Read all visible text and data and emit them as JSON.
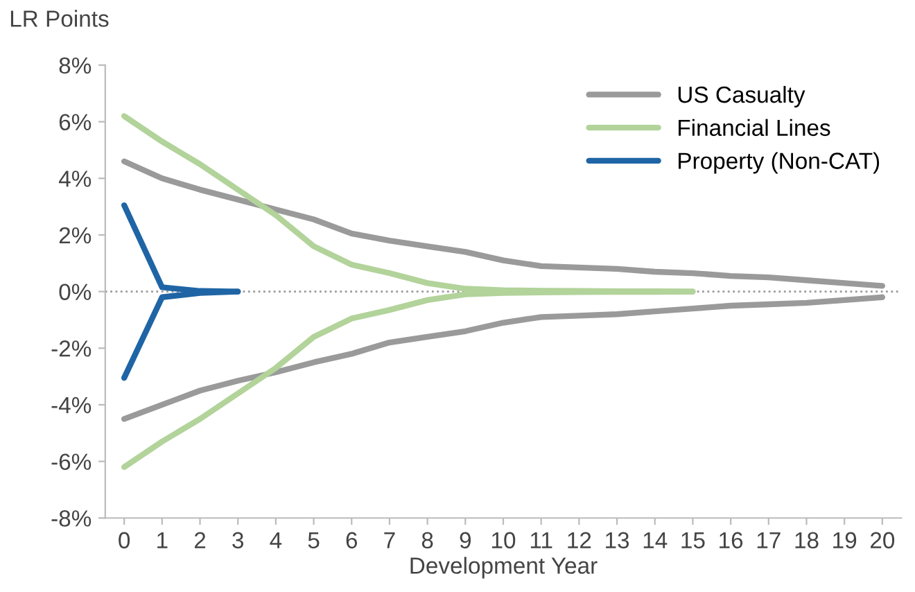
{
  "chart_data": {
    "type": "line",
    "ylabel": "LR Points",
    "xlabel": "Development Year",
    "categories": [
      "0",
      "1",
      "2",
      "3",
      "4",
      "5",
      "6",
      "7",
      "8",
      "9",
      "10",
      "11",
      "12",
      "13",
      "14",
      "15",
      "16",
      "17",
      "18",
      "19",
      "20"
    ],
    "series": [
      {
        "name": "US Casualty",
        "color": "#9a9a9a",
        "values": [
          4.6,
          4.0,
          3.6,
          3.25,
          2.9,
          2.55,
          2.05,
          1.8,
          1.6,
          1.4,
          1.1,
          0.9,
          0.85,
          0.8,
          0.7,
          0.65,
          0.55,
          0.5,
          0.4,
          0.3,
          0.2
        ]
      },
      {
        "color": "#9a9a9a",
        "values": [
          -4.5,
          -4.0,
          -3.5,
          -3.15,
          -2.85,
          -2.5,
          -2.2,
          -1.8,
          -1.6,
          -1.4,
          -1.1,
          -0.9,
          -0.85,
          -0.8,
          -0.7,
          -0.6,
          -0.5,
          -0.45,
          -0.4,
          -0.3,
          -0.2
        ]
      },
      {
        "name": "Financial Lines",
        "color": "#b2d39a",
        "values": [
          6.2,
          5.3,
          4.5,
          3.6,
          2.7,
          1.6,
          0.95,
          0.65,
          0.3,
          0.1,
          0.05,
          0.03,
          0.02,
          0.01,
          0.01,
          0,
          null,
          null,
          null,
          null,
          null
        ]
      },
      {
        "color": "#b2d39a",
        "values": [
          -6.2,
          -5.3,
          -4.5,
          -3.6,
          -2.7,
          -1.6,
          -0.95,
          -0.65,
          -0.3,
          -0.1,
          -0.05,
          -0.03,
          -0.02,
          -0.01,
          -0.01,
          0,
          null,
          null,
          null,
          null,
          null
        ]
      },
      {
        "name": "Property (Non-CAT)",
        "color": "#1f65a5",
        "values": [
          3.05,
          0.15,
          0.02,
          0,
          null,
          null,
          null,
          null,
          null,
          null,
          null,
          null,
          null,
          null,
          null,
          null,
          null,
          null,
          null,
          null,
          null
        ]
      },
      {
        "color": "#1f65a5",
        "values": [
          -3.05,
          -0.2,
          -0.05,
          0,
          null,
          null,
          null,
          null,
          null,
          null,
          null,
          null,
          null,
          null,
          null,
          null,
          null,
          null,
          null,
          null,
          null
        ]
      }
    ],
    "ylim": [
      -8,
      8
    ],
    "yticks": [
      {
        "value": -8,
        "label": "-8%"
      },
      {
        "value": -6,
        "label": "-6%"
      },
      {
        "value": -4,
        "label": "-4%"
      },
      {
        "value": -2,
        "label": "-2%"
      },
      {
        "value": 0,
        "label": "0%"
      },
      {
        "value": 2,
        "label": "2%"
      },
      {
        "value": 4,
        "label": "4%"
      },
      {
        "value": 6,
        "label": "6%"
      },
      {
        "value": 8,
        "label": "8%"
      }
    ],
    "ref_lines": [
      {
        "axis": "y",
        "value": 0,
        "color": "#999999",
        "line_style": "dotted"
      }
    ],
    "grid": false,
    "legend": "top right",
    "marker": "none",
    "line_style": "solid"
  }
}
